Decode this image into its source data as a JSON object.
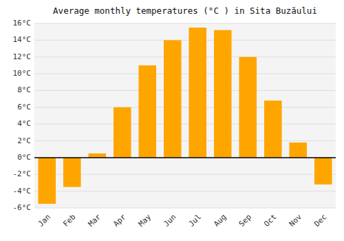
{
  "chart_data": {
    "type": "bar",
    "title": "Average monthly temperatures (°C ) in Sita Buzăului",
    "categories": [
      "Jan",
      "Feb",
      "Mar",
      "Apr",
      "May",
      "Jun",
      "Jul",
      "Aug",
      "Sep",
      "Oct",
      "Nov",
      "Dec"
    ],
    "values": [
      -5.5,
      -3.5,
      0.5,
      6.0,
      11.0,
      14.0,
      15.5,
      15.2,
      12.0,
      6.8,
      1.8,
      -3.2
    ],
    "color": "#FFA500",
    "ylim": [
      -6,
      16
    ],
    "yticks": [
      {
        "value": -6,
        "label": "-6°C"
      },
      {
        "value": -4,
        "label": "-4°C"
      },
      {
        "value": -2,
        "label": "-2°C"
      },
      {
        "value": 0,
        "label": "0°C"
      },
      {
        "value": 2,
        "label": "2°C"
      },
      {
        "value": 4,
        "label": "4°C"
      },
      {
        "value": 6,
        "label": "6°C"
      },
      {
        "value": 8,
        "label": "8°C"
      },
      {
        "value": 10,
        "label": "10°C"
      },
      {
        "value": 12,
        "label": "12°C"
      },
      {
        "value": 14,
        "label": "14°C"
      },
      {
        "value": 16,
        "label": "16°C"
      }
    ],
    "grid": true
  }
}
